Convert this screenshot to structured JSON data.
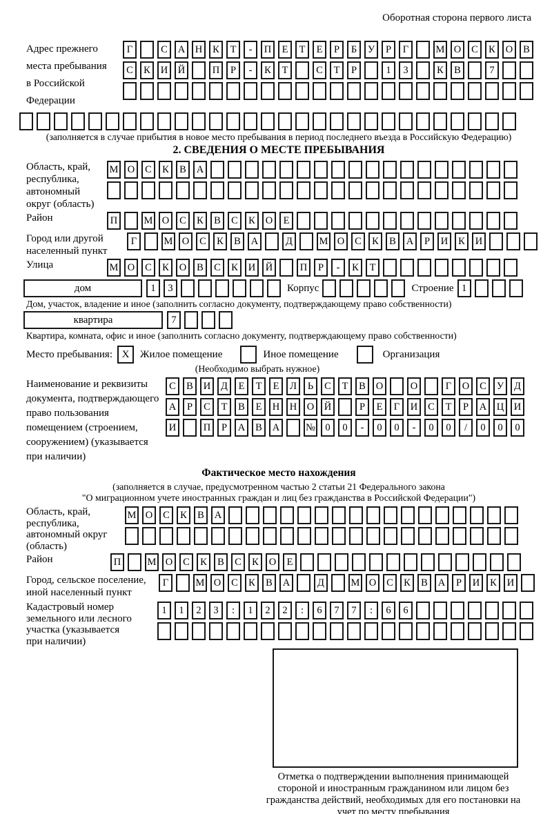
{
  "header": {
    "note": "Оборотная сторона первого листа"
  },
  "prev_address": {
    "label": "Адрес прежнего\nместа пребывания\nв Российской\nФедерации",
    "row1": {
      "len": 24,
      "text": "Г САНКТ-ПЕТЕРБУРГ МОСКОВ"
    },
    "row2": {
      "len": 24,
      "text": "СКИЙ ПР-КТ СТР 13 КВ 7"
    },
    "row3": {
      "len": 24,
      "text": ""
    },
    "row4": {
      "len": 29,
      "text": ""
    },
    "note": "(заполняется в случае прибытия в новое место пребывания в период последнего въезда в Российскую Федерацию)"
  },
  "section2": {
    "title": "2. СВЕДЕНИЯ О МЕСТЕ ПРЕБЫВАНИЯ",
    "region": {
      "label": "Область, край,\nреспублика,\nавтономный\nокруг (область)",
      "row1": {
        "len": 24,
        "text": "МОСКВА"
      },
      "row2": {
        "len": 24,
        "text": ""
      }
    },
    "district": {
      "label": "Район",
      "row": {
        "len": 24,
        "text": "П МОСКВСКОЕ"
      }
    },
    "city": {
      "label": "Город или другой\nнаселенный пункт",
      "row": {
        "len": 24,
        "text": "Г МОСКВА Д МОСКВАРИКИ"
      }
    },
    "street": {
      "label": "Улица",
      "row": {
        "len": 24,
        "text": "МОСКОВСКИЙ ПР-КТ"
      }
    },
    "house": {
      "label": "дом",
      "cells": {
        "len": 8,
        "text": "13"
      },
      "korpus_label": "Корпус",
      "korpus_cells": {
        "len": 5,
        "text": ""
      },
      "stroenie_label": "Строение",
      "stroenie_cells": {
        "len": 4,
        "text": "1"
      }
    },
    "house_note": "Дом, участок, владение и иное (заполнить согласно документу, подтверждающему право собственности)",
    "apartment": {
      "label": "квартира",
      "cells": {
        "len": 4,
        "text": "7"
      }
    },
    "apartment_note": "Квартира, комната, офис и иное (заполнить согласно документу, подтверждающему право собственности)",
    "stay": {
      "label": "Место пребывания:",
      "checkbox1": "X",
      "option1": "Жилое помещение",
      "checkbox2": "",
      "option2": "Иное помещение",
      "checkbox3": "",
      "option3": "Организация",
      "note": "(Необходимо выбрать нужное)"
    },
    "document": {
      "label": "Наименование и реквизиты\nдокумента, подтверждающего\nправо пользования\nпомещением (строением,\nсооружением) (указывается\nпри наличии)",
      "row1": {
        "len": 21,
        "text": "СВИДЕТЕЛЬСТВО О ГОСУД"
      },
      "row2": {
        "len": 21,
        "text": "АРСТВЕННОЙ РЕГИСТРАЦИ"
      },
      "row3": {
        "len": 21,
        "text": "И ПРАВА №00-00-00/000"
      }
    }
  },
  "actual": {
    "title": "Фактическое место нахождения",
    "note1": "(заполняется в случае, предусмотренном частью 2 статьи 21 Федерального закона",
    "note2": "\"О миграционном учете иностранных граждан и лиц без гражданства в Российской Федерации\")",
    "region": {
      "label": "Область, край,\nреспублика,\nавтономный округ\n(область)",
      "row1": {
        "len": 23,
        "text": "МОСКВА"
      },
      "row2": {
        "len": 23,
        "text": ""
      }
    },
    "district": {
      "label": "Район",
      "row": {
        "len": 24,
        "text": "П МОСКВСКОЕ"
      }
    },
    "city": {
      "label": "Город, сельское поселение,\nиной населенный пункт",
      "row": {
        "len": 22,
        "text": "Г МОСКВА Д МОСКВАРИКИ"
      }
    },
    "cadastral": {
      "label": "Кадастровый номер\nземельного или лесного\nучастка (указывается\nпри наличии)",
      "row1": {
        "len": 22,
        "text": "1123:122:677:66"
      },
      "row2": {
        "len": 22,
        "text": ""
      }
    }
  },
  "confirmation": {
    "note": "Отметка о подтверждении выполнения принимающей стороной и иностранным гражданином или лицом без гражданства действий, необходимых для его постановки на учет по месту пребывания"
  }
}
